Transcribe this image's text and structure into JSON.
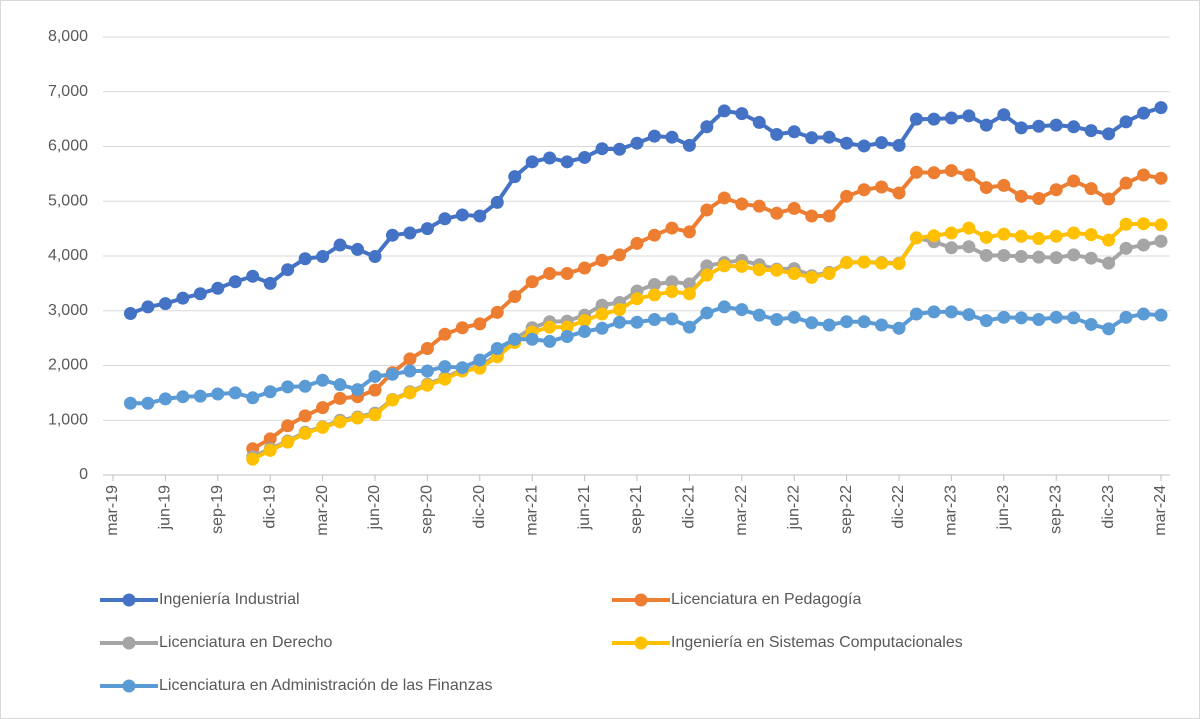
{
  "chart_data": {
    "type": "line",
    "categories": [
      "mar-19",
      null,
      null,
      "jun-19",
      null,
      null,
      "sep-19",
      null,
      null,
      "dic-19",
      null,
      null,
      "mar-20",
      null,
      null,
      "jun-20",
      null,
      null,
      "sep-20",
      null,
      null,
      "dic-20",
      null,
      null,
      "mar-21",
      null,
      null,
      "jun-21",
      null,
      null,
      "sep-21",
      null,
      null,
      "dic-21",
      null,
      null,
      "mar-22",
      null,
      null,
      "jun-22",
      null,
      null,
      "sep-22",
      null,
      null,
      "dic-22",
      null,
      null,
      "mar-23",
      null,
      null,
      "jun-23",
      null,
      null,
      "sep-23",
      null,
      null,
      "dic-23",
      null,
      null,
      "mar-24"
    ],
    "ylim": [
      0,
      8000
    ],
    "yticks": [
      {
        "value": 0,
        "label": "0"
      },
      {
        "value": 1000,
        "label": "1,000"
      },
      {
        "value": 2000,
        "label": "2,000"
      },
      {
        "value": 3000,
        "label": "3,000"
      },
      {
        "value": 4000,
        "label": "4,000"
      },
      {
        "value": 5000,
        "label": "5,000"
      },
      {
        "value": 6000,
        "label": "6,000"
      },
      {
        "value": 7000,
        "label": "7,000"
      },
      {
        "value": 8000,
        "label": "8,000"
      }
    ],
    "grid": true,
    "legend": "bottom",
    "series": [
      {
        "name": "Ingeniería Industrial",
        "color": "#4472c4",
        "values": [
          null,
          2950,
          3070,
          3130,
          3230,
          3310,
          3410,
          3530,
          3630,
          3500,
          3750,
          3950,
          3990,
          4200,
          4120,
          3990,
          4380,
          4420,
          4500,
          4680,
          4750,
          4730,
          4980,
          5450,
          5720,
          5790,
          5720,
          5800,
          5960,
          5950,
          6060,
          6190,
          6170,
          6020,
          6360,
          6650,
          6600,
          6440,
          6220,
          6270,
          6160,
          6170,
          6060,
          6010,
          6070,
          6020,
          6500,
          6500,
          6520,
          6560,
          6390,
          6580,
          6340,
          6370,
          6390,
          6360,
          6290,
          6230,
          6450,
          6610,
          6710
        ]
      },
      {
        "name": "Licenciatura en Pedagogía",
        "color": "#ed7d31",
        "values": [
          null,
          null,
          null,
          null,
          null,
          null,
          null,
          null,
          480,
          660,
          900,
          1080,
          1230,
          1400,
          1430,
          1550,
          1870,
          2120,
          2310,
          2570,
          2690,
          2760,
          2970,
          3260,
          3530,
          3680,
          3680,
          3780,
          3920,
          4020,
          4230,
          4380,
          4510,
          4440,
          4840,
          5060,
          4950,
          4910,
          4780,
          4870,
          4730,
          4730,
          5090,
          5210,
          5260,
          5150,
          5530,
          5520,
          5560,
          5480,
          5250,
          5290,
          5090,
          5050,
          5210,
          5370,
          5230,
          5040,
          5330,
          5480,
          5420
        ]
      },
      {
        "name": "Licenciatura en Derecho",
        "color": "#a5a5a5",
        "values": [
          null,
          null,
          null,
          null,
          null,
          null,
          null,
          null,
          330,
          480,
          620,
          780,
          880,
          1000,
          1060,
          1130,
          1380,
          1520,
          1660,
          1780,
          1920,
          1970,
          2200,
          2480,
          2690,
          2800,
          2810,
          2920,
          3100,
          3150,
          3360,
          3480,
          3530,
          3490,
          3820,
          3880,
          3920,
          3840,
          3760,
          3770,
          3640,
          3700,
          3880,
          3890,
          3880,
          3870,
          4330,
          4260,
          4150,
          4170,
          4010,
          4010,
          3990,
          3980,
          3970,
          4020,
          3960,
          3870,
          4140,
          4200,
          4270
        ]
      },
      {
        "name": "Ingeniería en Sistemas Computacionales",
        "color": "#ffc000",
        "values": [
          null,
          null,
          null,
          null,
          null,
          null,
          null,
          null,
          290,
          450,
          600,
          760,
          870,
          970,
          1040,
          1100,
          1370,
          1500,
          1640,
          1750,
          1900,
          1950,
          2160,
          2420,
          2610,
          2700,
          2700,
          2820,
          2940,
          3020,
          3220,
          3290,
          3350,
          3310,
          3650,
          3820,
          3810,
          3750,
          3740,
          3680,
          3610,
          3680,
          3880,
          3890,
          3870,
          3860,
          4330,
          4370,
          4420,
          4510,
          4340,
          4400,
          4360,
          4320,
          4360,
          4420,
          4390,
          4290,
          4580,
          4590,
          4570
        ]
      },
      {
        "name": "Licenciatura en Administración de las Finanzas",
        "color": "#5b9bd5",
        "values": [
          null,
          1310,
          1310,
          1390,
          1430,
          1440,
          1480,
          1500,
          1410,
          1520,
          1610,
          1620,
          1730,
          1650,
          1560,
          1800,
          1840,
          1900,
          1900,
          1980,
          1960,
          2100,
          2310,
          2480,
          2480,
          2440,
          2530,
          2620,
          2680,
          2790,
          2790,
          2840,
          2850,
          2700,
          2960,
          3070,
          3020,
          2920,
          2840,
          2880,
          2780,
          2740,
          2800,
          2800,
          2740,
          2680,
          2940,
          2980,
          2980,
          2930,
          2820,
          2880,
          2870,
          2840,
          2880,
          2870,
          2750,
          2670,
          2880,
          2940,
          2920
        ]
      }
    ]
  }
}
